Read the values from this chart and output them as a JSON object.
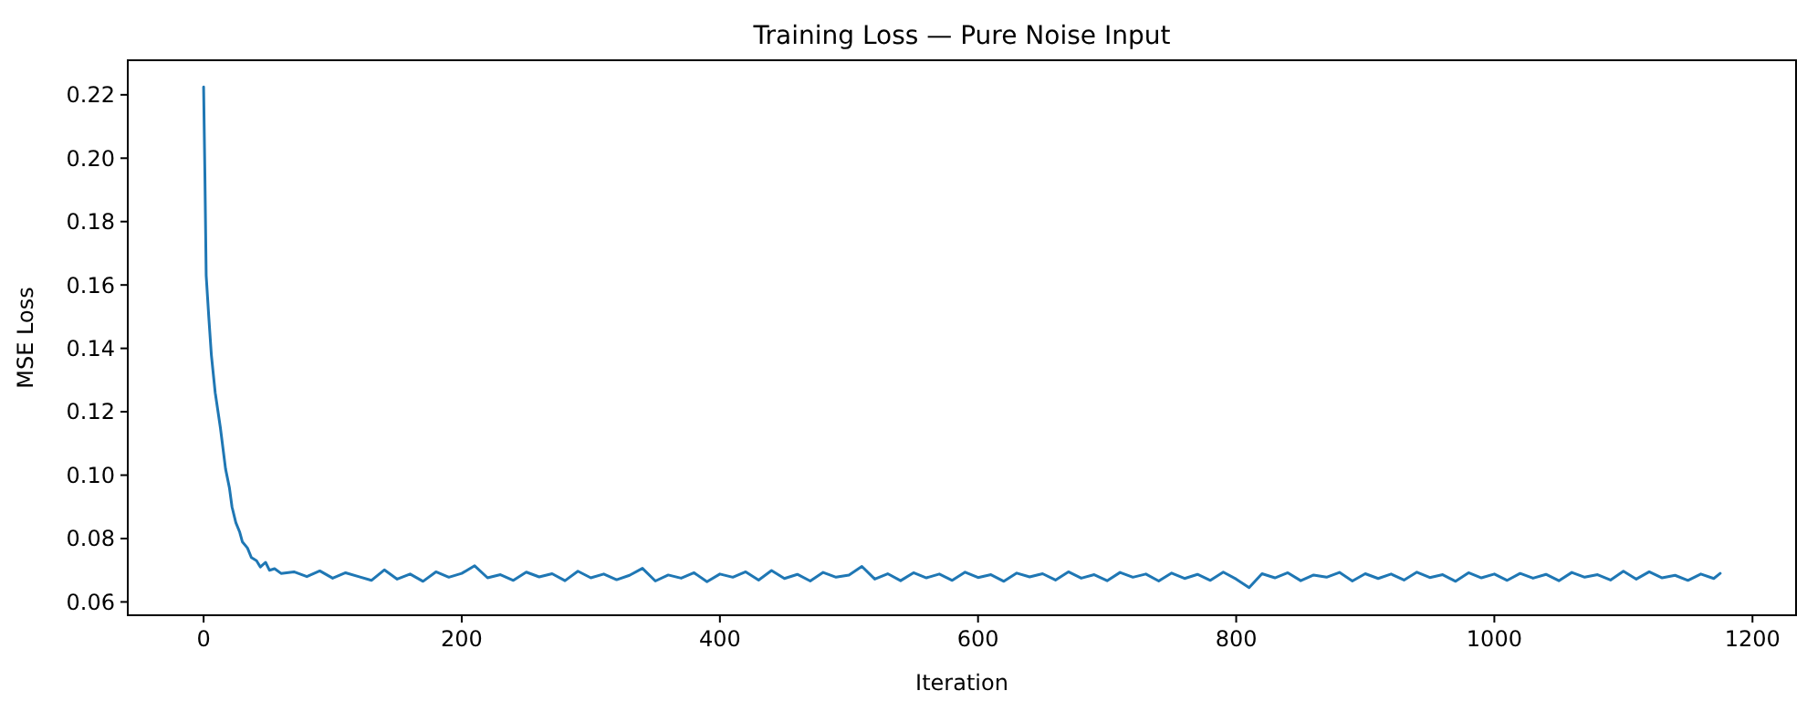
{
  "chart_data": {
    "type": "line",
    "title": "Training Loss — Pure Noise Input",
    "xlabel": "Iteration",
    "ylabel": "MSE Loss",
    "xlim": [
      -58.75,
      1233.75
    ],
    "ylim": [
      0.0558,
      0.2309
    ],
    "xticks": [
      0,
      200,
      400,
      600,
      800,
      1000,
      1200
    ],
    "yticks": [
      {
        "value": 0.06,
        "label": "0.06"
      },
      {
        "value": 0.08,
        "label": "0.08"
      },
      {
        "value": 0.1,
        "label": "0.10"
      },
      {
        "value": 0.12,
        "label": "0.12"
      },
      {
        "value": 0.14,
        "label": "0.14"
      },
      {
        "value": 0.16,
        "label": "0.16"
      },
      {
        "value": 0.18,
        "label": "0.18"
      },
      {
        "value": 0.2,
        "label": "0.20"
      },
      {
        "value": 0.22,
        "label": "0.22"
      }
    ],
    "grid": false,
    "line_style": "solid",
    "marker": "none",
    "series": [
      {
        "color": "#1f77b4",
        "x": [
          0,
          1,
          2,
          4,
          6,
          9,
          13,
          17,
          20,
          22,
          25,
          28,
          30,
          34,
          37,
          41,
          44,
          48,
          51,
          55,
          60,
          70,
          80,
          90,
          100,
          110,
          120,
          130,
          140,
          150,
          160,
          170,
          180,
          190,
          200,
          210,
          220,
          230,
          240,
          250,
          260,
          270,
          280,
          290,
          300,
          310,
          320,
          330,
          340,
          350,
          360,
          370,
          380,
          390,
          400,
          410,
          420,
          430,
          440,
          450,
          460,
          470,
          480,
          490,
          500,
          510,
          520,
          530,
          540,
          550,
          560,
          570,
          580,
          590,
          600,
          610,
          620,
          630,
          640,
          650,
          660,
          670,
          680,
          690,
          700,
          710,
          720,
          730,
          740,
          750,
          760,
          770,
          780,
          790,
          800,
          810,
          820,
          830,
          840,
          850,
          860,
          870,
          880,
          890,
          900,
          910,
          920,
          930,
          940,
          950,
          960,
          970,
          980,
          990,
          1000,
          1010,
          1020,
          1030,
          1040,
          1050,
          1060,
          1070,
          1080,
          1090,
          1100,
          1110,
          1120,
          1130,
          1140,
          1150,
          1160,
          1170,
          1175
        ],
        "values": [
          0.2225,
          0.195,
          0.163,
          0.15,
          0.138,
          0.126,
          0.115,
          0.102,
          0.096,
          0.09,
          0.085,
          0.082,
          0.079,
          0.077,
          0.074,
          0.073,
          0.071,
          0.0725,
          0.07,
          0.0705,
          0.069,
          0.0695,
          0.068,
          0.0698,
          0.0675,
          0.0692,
          0.068,
          0.0668,
          0.0701,
          0.0672,
          0.0688,
          0.0665,
          0.0695,
          0.0678,
          0.069,
          0.0714,
          0.0676,
          0.0686,
          0.0668,
          0.0694,
          0.0679,
          0.0689,
          0.0667,
          0.0697,
          0.0676,
          0.0688,
          0.067,
          0.0684,
          0.0706,
          0.0666,
          0.0685,
          0.0675,
          0.0692,
          0.0664,
          0.0688,
          0.0678,
          0.0695,
          0.0669,
          0.0699,
          0.0674,
          0.0687,
          0.0666,
          0.0693,
          0.0678,
          0.0685,
          0.0712,
          0.0672,
          0.0689,
          0.0667,
          0.0692,
          0.0676,
          0.0688,
          0.0668,
          0.0694,
          0.0677,
          0.0686,
          0.0665,
          0.0691,
          0.0679,
          0.0689,
          0.0669,
          0.0695,
          0.0675,
          0.0686,
          0.0667,
          0.0693,
          0.0678,
          0.0688,
          0.0666,
          0.0691,
          0.0674,
          0.0687,
          0.0668,
          0.0694,
          0.0672,
          0.0645,
          0.0689,
          0.0676,
          0.0692,
          0.0667,
          0.0685,
          0.0678,
          0.0693,
          0.0666,
          0.0689,
          0.0674,
          0.0688,
          0.0669,
          0.0694,
          0.0677,
          0.0686,
          0.0665,
          0.0692,
          0.0676,
          0.0688,
          0.0668,
          0.069,
          0.0675,
          0.0687,
          0.0667,
          0.0693,
          0.0678,
          0.0686,
          0.0669,
          0.0697,
          0.0672,
          0.0695,
          0.0676,
          0.0684,
          0.0668,
          0.0688,
          0.0674,
          0.069
        ]
      }
    ]
  }
}
